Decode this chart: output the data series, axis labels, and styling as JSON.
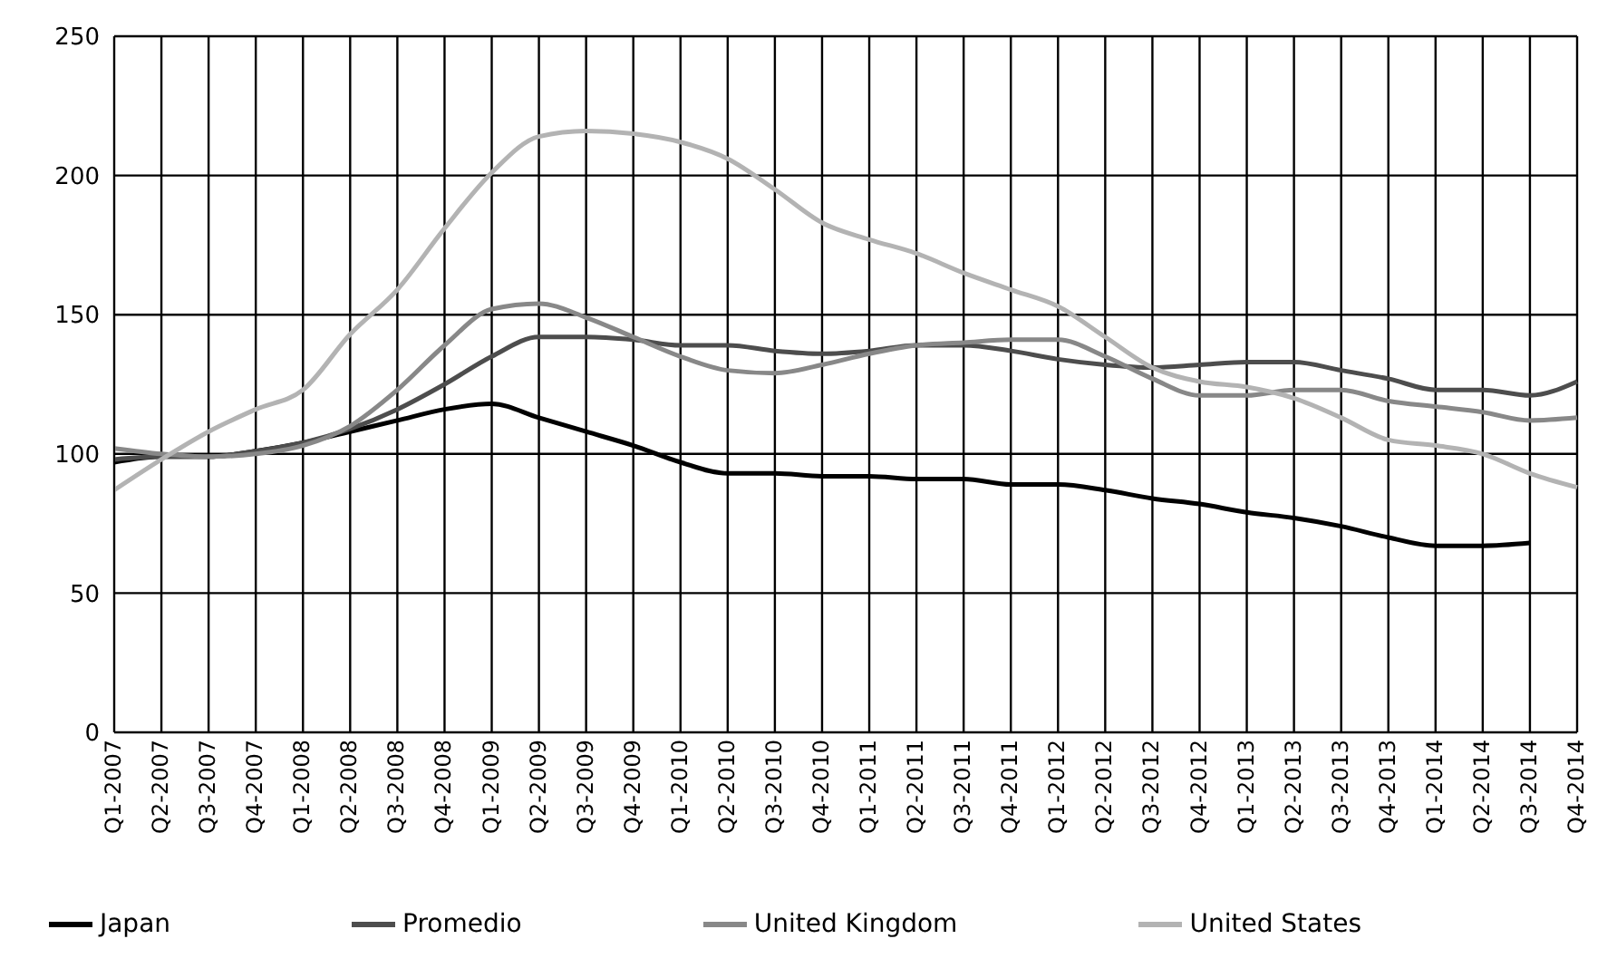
{
  "chart_data": {
    "type": "line",
    "categories": [
      "Q1-2007",
      "Q2-2007",
      "Q3-2007",
      "Q4-2007",
      "Q1-2008",
      "Q2-2008",
      "Q3-2008",
      "Q4-2008",
      "Q1-2009",
      "Q2-2009",
      "Q3-2009",
      "Q4-2009",
      "Q1-2010",
      "Q2-2010",
      "Q3-2010",
      "Q4-2010",
      "Q1-2011",
      "Q2-2011",
      "Q3-2011",
      "Q4-2011",
      "Q1-2012",
      "Q2-2012",
      "Q3-2012",
      "Q4-2012",
      "Q1-2013",
      "Q2-2013",
      "Q3-2013",
      "Q4-2013",
      "Q1-2014",
      "Q2-2014",
      "Q3-2014",
      "Q4-2014"
    ],
    "series": [
      {
        "name": "Japan",
        "color": "#000000",
        "values": [
          97,
          99,
          99,
          101,
          104,
          108,
          112,
          116,
          118,
          113,
          108,
          103,
          97,
          93,
          93,
          92,
          92,
          91,
          91,
          89,
          89,
          87,
          84,
          82,
          79,
          77,
          74,
          70,
          67,
          67,
          68,
          null
        ]
      },
      {
        "name": "Promedio",
        "color": "#4d4d4d",
        "values": [
          98,
          99,
          99,
          101,
          104,
          109,
          116,
          125,
          135,
          142,
          142,
          141,
          139,
          139,
          137,
          136,
          137,
          139,
          139,
          137,
          134,
          132,
          131,
          132,
          133,
          133,
          130,
          127,
          123,
          123,
          121,
          126
        ]
      },
      {
        "name": "United Kingdom",
        "color": "#888888",
        "values": [
          102,
          100,
          99,
          100,
          103,
          110,
          123,
          139,
          152,
          154,
          149,
          142,
          135,
          130,
          129,
          132,
          136,
          139,
          140,
          141,
          141,
          135,
          127,
          121,
          121,
          123,
          123,
          119,
          117,
          115,
          112,
          113
        ]
      },
      {
        "name": "United States",
        "color": "#b3b3b3",
        "values": [
          87,
          98,
          108,
          116,
          123,
          143,
          159,
          181,
          201,
          214,
          216,
          215,
          212,
          206,
          195,
          183,
          177,
          172,
          165,
          159,
          153,
          142,
          131,
          126,
          124,
          120,
          113,
          105,
          103,
          100,
          93,
          88
        ]
      }
    ],
    "ylim": [
      0,
      250
    ],
    "yticks": [
      0,
      50,
      100,
      150,
      200,
      250
    ],
    "grid": true,
    "legend": "bottom",
    "marker": "none",
    "line_style": "solid"
  }
}
